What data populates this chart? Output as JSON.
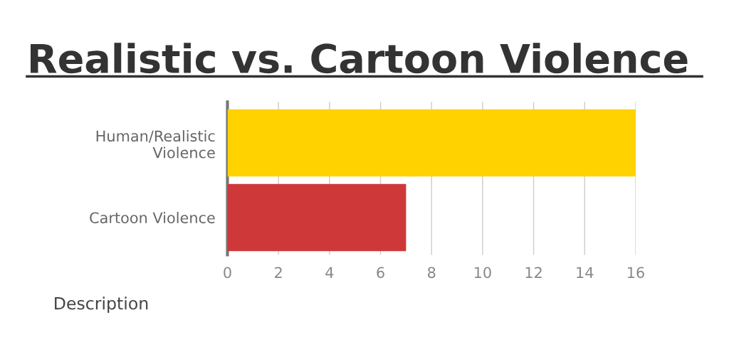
{
  "chart_data": {
    "type": "bar",
    "orientation": "horizontal",
    "title": "Realistic vs. Cartoon Violence",
    "categories": [
      "Human/Realistic\nViolence",
      "Cartoon Violence"
    ],
    "values": [
      16,
      7
    ],
    "colors": [
      "#ffd200",
      "#cf3838"
    ],
    "xlim": [
      0,
      16
    ],
    "xticks": [
      0,
      2,
      4,
      6,
      8,
      10,
      12,
      14,
      16
    ],
    "grid": "x",
    "annotations": [
      "Description"
    ]
  }
}
